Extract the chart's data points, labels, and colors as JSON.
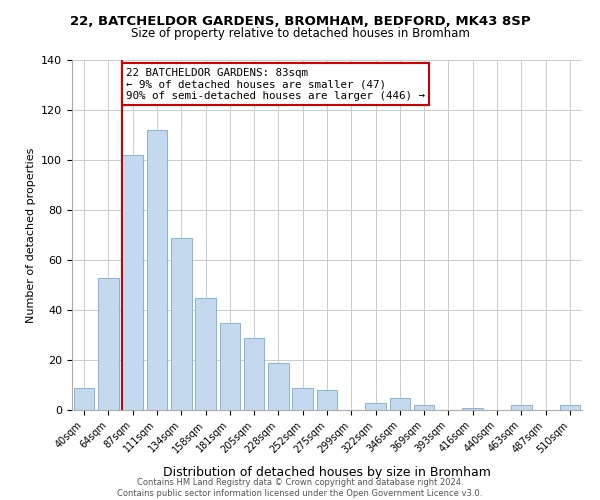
{
  "title": "22, BATCHELDOR GARDENS, BROMHAM, BEDFORD, MK43 8SP",
  "subtitle": "Size of property relative to detached houses in Bromham",
  "xlabel": "Distribution of detached houses by size in Bromham",
  "ylabel": "Number of detached properties",
  "bar_labels": [
    "40sqm",
    "64sqm",
    "87sqm",
    "111sqm",
    "134sqm",
    "158sqm",
    "181sqm",
    "205sqm",
    "228sqm",
    "252sqm",
    "275sqm",
    "299sqm",
    "322sqm",
    "346sqm",
    "369sqm",
    "393sqm",
    "416sqm",
    "440sqm",
    "463sqm",
    "487sqm",
    "510sqm"
  ],
  "bar_values": [
    9,
    53,
    102,
    112,
    69,
    45,
    35,
    29,
    19,
    9,
    8,
    0,
    3,
    5,
    2,
    0,
    1,
    0,
    2,
    0,
    2
  ],
  "bar_color": "#c5d9ee",
  "bar_edge_color": "#89b3d4",
  "vline_x_index": 2,
  "vline_color": "#cc0000",
  "annotation_line1": "22 BATCHELDOR GARDENS: 83sqm",
  "annotation_line2": "← 9% of detached houses are smaller (47)",
  "annotation_line3": "90% of semi-detached houses are larger (446) →",
  "annotation_box_color": "#ffffff",
  "annotation_box_edge": "#cc0000",
  "ylim": [
    0,
    140
  ],
  "yticks": [
    0,
    20,
    40,
    60,
    80,
    100,
    120,
    140
  ],
  "footer_line1": "Contains HM Land Registry data © Crown copyright and database right 2024.",
  "footer_line2": "Contains public sector information licensed under the Open Government Licence v3.0.",
  "bg_color": "#ffffff",
  "grid_color": "#cccccc"
}
